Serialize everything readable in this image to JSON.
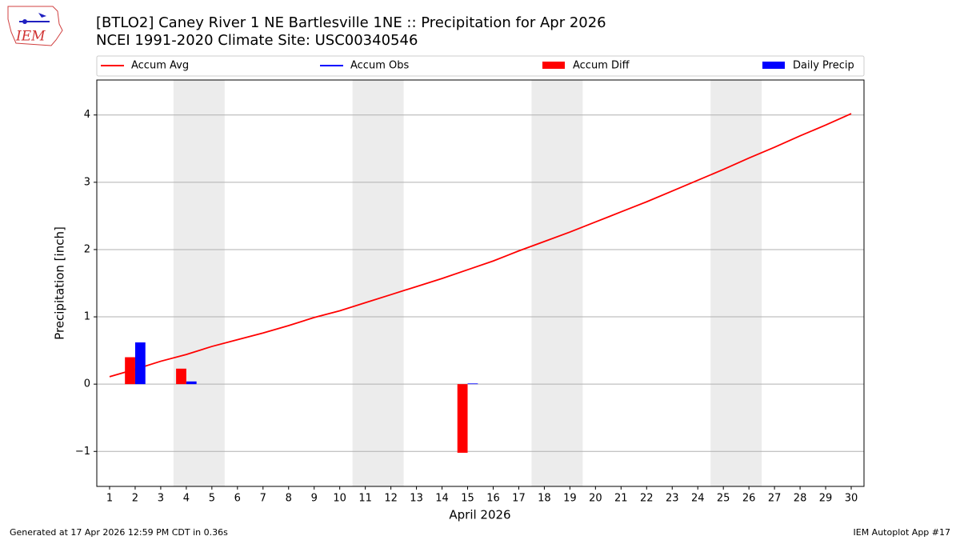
{
  "chart_data": {
    "type": "line",
    "title": "[BTLO2] Caney River 1 NE Bartlesville 1NE :: Precipitation for Apr 2026",
    "subtitle": "NCEI 1991-2020 Climate Site: USC00340546",
    "xlabel": "April 2026",
    "ylabel": "Precipitation [inch]",
    "footer_left": "Generated at 17 Apr 2026 12:59 PM CDT in 0.36s",
    "footer_right": "IEM Autoplot App #17",
    "logo_text": "IEM",
    "x": [
      1,
      2,
      3,
      4,
      5,
      6,
      7,
      8,
      9,
      10,
      11,
      12,
      13,
      14,
      15,
      16,
      17,
      18,
      19,
      20,
      21,
      22,
      23,
      24,
      25,
      26,
      27,
      28,
      29,
      30
    ],
    "series": [
      {
        "name": "Accum Avg",
        "color": "#ff0000",
        "kind": "line",
        "values": [
          0.11,
          0.22,
          0.34,
          0.44,
          0.56,
          0.66,
          0.76,
          0.87,
          0.99,
          1.09,
          1.21,
          1.33,
          1.45,
          1.57,
          1.7,
          1.83,
          1.98,
          2.12,
          2.26,
          2.41,
          2.56,
          2.71,
          2.87,
          3.03,
          3.19,
          3.36,
          3.52,
          3.69,
          3.85,
          4.02
        ]
      },
      {
        "name": "Accum Obs",
        "color": "#0000ff",
        "kind": "line"
      },
      {
        "name": "Accum Diff",
        "color": "#ff0000",
        "kind": "bar",
        "side": "left",
        "x": [
          2,
          4,
          15
        ],
        "values": [
          0.4,
          0.23,
          -1.02
        ]
      },
      {
        "name": "Daily Precip",
        "color": "#0000ff",
        "kind": "bar",
        "side": "right",
        "x": [
          2,
          4,
          15
        ],
        "values": [
          0.62,
          0.04,
          0.01
        ]
      }
    ],
    "weekend_spans": [
      [
        3.5,
        5.5
      ],
      [
        10.5,
        12.5
      ],
      [
        17.5,
        19.5
      ],
      [
        24.5,
        26.5
      ]
    ],
    "xlim": [
      0.5,
      30.5
    ],
    "xticks": [
      1,
      2,
      3,
      4,
      5,
      6,
      7,
      8,
      9,
      10,
      11,
      12,
      13,
      14,
      15,
      16,
      17,
      18,
      19,
      20,
      21,
      22,
      23,
      24,
      25,
      26,
      27,
      28,
      29,
      30
    ],
    "ylim": [
      -1.52,
      4.52
    ],
    "yticks": [
      {
        "value": -1,
        "label": "−1"
      },
      0,
      1,
      2,
      3,
      4
    ],
    "grid": true
  }
}
